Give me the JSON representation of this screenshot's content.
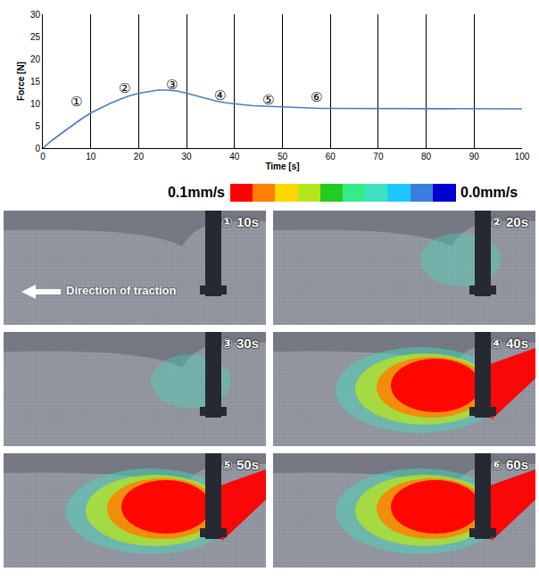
{
  "chart_data": {
    "type": "line",
    "x": [
      0,
      2,
      4,
      6,
      8,
      10,
      12,
      14,
      16,
      18,
      20,
      22,
      24,
      26,
      28,
      30,
      32,
      34,
      36,
      38,
      40,
      42,
      44,
      46,
      48,
      50,
      52,
      54,
      56,
      58,
      60,
      62,
      64,
      66,
      68,
      70,
      72,
      74,
      76,
      78,
      80,
      82,
      84,
      86,
      88,
      90,
      92,
      94,
      96,
      98,
      100
    ],
    "values": [
      0,
      1.8,
      3.4,
      5.0,
      6.5,
      7.9,
      9.0,
      10.0,
      10.9,
      11.7,
      12.3,
      12.7,
      13.0,
      13.0,
      12.8,
      12.3,
      11.7,
      11.1,
      10.6,
      10.2,
      9.9,
      9.7,
      9.5,
      9.4,
      9.3,
      9.2,
      9.1,
      9.0,
      9.0,
      8.9,
      8.9,
      8.9,
      8.9,
      8.8,
      8.9,
      8.9,
      8.8,
      8.9,
      8.8,
      8.8,
      8.9,
      8.9,
      8.9,
      8.8,
      8.9,
      8.8,
      8.9,
      8.8,
      8.9,
      8.9,
      8.8
    ],
    "color": "#4a7ebb",
    "xlabel": "Time [s]",
    "ylabel": "Force [N]",
    "xlim": [
      0,
      100
    ],
    "ylim": [
      0,
      30
    ],
    "xticks": [
      0,
      10,
      20,
      30,
      40,
      50,
      60,
      70,
      80,
      90,
      100
    ],
    "yticks": [
      0,
      5,
      10,
      15,
      20,
      25,
      30
    ],
    "grid": "x",
    "annotations": [
      {
        "text": "①",
        "x": 7,
        "y": 10.5
      },
      {
        "text": "②",
        "x": 17,
        "y": 13.6
      },
      {
        "text": "③",
        "x": 27,
        "y": 14.4
      },
      {
        "text": "④",
        "x": 37,
        "y": 11.9
      },
      {
        "text": "⑤",
        "x": 47,
        "y": 11.0
      },
      {
        "text": "⑥",
        "x": 57,
        "y": 11.6
      }
    ]
  },
  "colorbar": {
    "colors": [
      "#ff0000",
      "#ff7f00",
      "#ffd700",
      "#b5e61d",
      "#22cc22",
      "#33ee88",
      "#40e0c0",
      "#1ec8ff",
      "#3a7fe0",
      "#0000d0"
    ],
    "range": [
      0.1,
      0.0
    ],
    "ticks": [
      {
        "value": 0.1,
        "label": "0.1mm/s"
      },
      {
        "value": 0.0,
        "label": "0.0mm/s"
      }
    ]
  },
  "panels": [
    {
      "label": "① 10s",
      "note": "Direction of traction"
    },
    {
      "label": "② 20s"
    },
    {
      "label": "③ 30s"
    },
    {
      "label": "④ 40s"
    },
    {
      "label": "⑤ 50s"
    },
    {
      "label": "⑥ 60s"
    }
  ]
}
